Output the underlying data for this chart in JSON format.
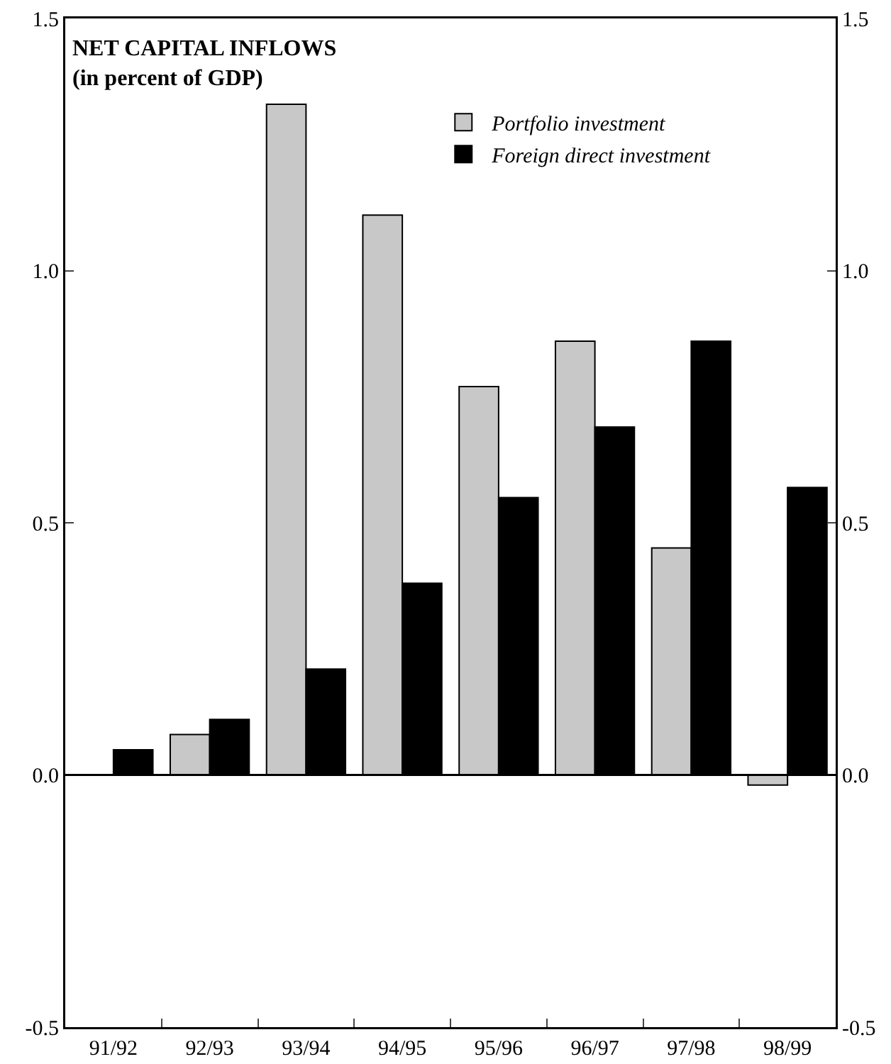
{
  "chart_data": {
    "type": "bar",
    "title": "NET CAPITAL INFLOWS",
    "subtitle": "(in percent of GDP)",
    "categories": [
      "91/92",
      "92/93",
      "93/94",
      "94/95",
      "95/96",
      "96/97",
      "97/98",
      "98/99"
    ],
    "series": [
      {
        "name": "Portfolio investment",
        "color": "#c8c8c8",
        "values": [
          null,
          0.08,
          1.33,
          1.11,
          0.77,
          0.86,
          0.45,
          -0.02
        ]
      },
      {
        "name": "Foreign direct investment",
        "color": "#000000",
        "values": [
          0.05,
          0.11,
          0.21,
          0.38,
          0.55,
          0.69,
          0.86,
          0.57
        ]
      }
    ],
    "ylim": [
      -0.5,
      1.5
    ],
    "yticks": [
      {
        "value": -0.5,
        "label": "-0.5"
      },
      {
        "value": 0,
        "label": "0.0"
      },
      {
        "value": 0.5,
        "label": "0.5"
      },
      {
        "value": 1,
        "label": "1.0"
      },
      {
        "value": 1.5,
        "label": "1.5"
      }
    ],
    "y2lim": [
      -0.5,
      1.5
    ],
    "y2ticks": [
      {
        "value": -0.5,
        "label": "-0.5"
      },
      {
        "value": 0,
        "label": "0.0"
      },
      {
        "value": 0.5,
        "label": "0.5"
      },
      {
        "value": 1,
        "label": "1.0"
      },
      {
        "value": 1.5,
        "label": "1.5"
      }
    ],
    "ref_lines": [
      {
        "axis": "y",
        "value": 0
      }
    ],
    "grid": false,
    "legend": "top right"
  }
}
